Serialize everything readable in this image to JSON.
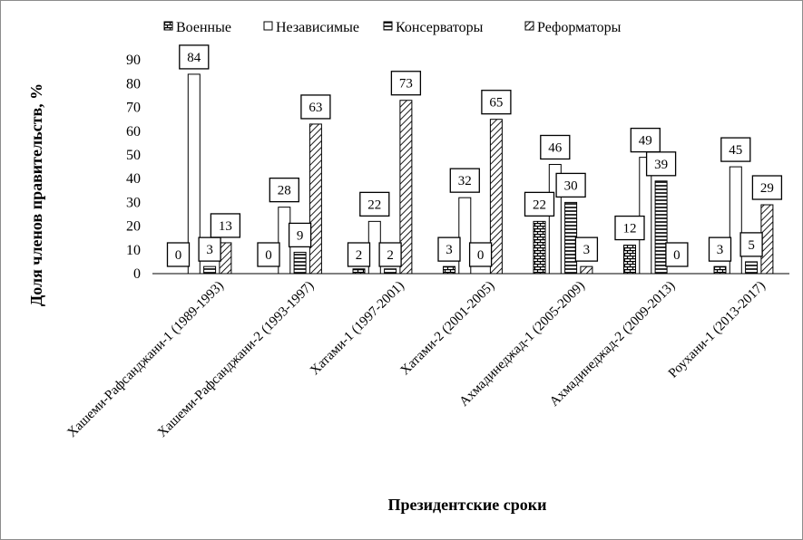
{
  "chart_data": {
    "type": "bar",
    "xlabel": "Президентские сроки",
    "ylabel": "Доля членов правительств,  %",
    "ylim": [
      0,
      90
    ],
    "yticks": [
      0,
      10,
      20,
      30,
      40,
      50,
      60,
      70,
      80,
      90
    ],
    "grid": false,
    "legend_position": "top",
    "categories": [
      "Хашеми-Рафсанджани-1 (1989-1993)",
      "Хашеми-Рафсанджани-2 (1993-1997)",
      "Хатами-1 (1997-2001)",
      "Хатами-2 (2001-2005)",
      "Ахмадинеджад-1 (2005-2009)",
      "Ахмадинеджад-2 (2009-2013)",
      "Роухани-1 (2013-2017)"
    ],
    "series": [
      {
        "name": "Военные",
        "pattern": "brick",
        "values": [
          0,
          0,
          2,
          3,
          22,
          12,
          3
        ]
      },
      {
        "name": "Независимые",
        "pattern": "white",
        "values": [
          84,
          28,
          22,
          32,
          46,
          49,
          45
        ]
      },
      {
        "name": "Консерваторы",
        "pattern": "horizontal",
        "values": [
          3,
          9,
          2,
          0,
          30,
          39,
          5
        ]
      },
      {
        "name": "Реформаторы",
        "pattern": "diagonal",
        "values": [
          13,
          63,
          73,
          65,
          3,
          0,
          29
        ]
      }
    ]
  }
}
